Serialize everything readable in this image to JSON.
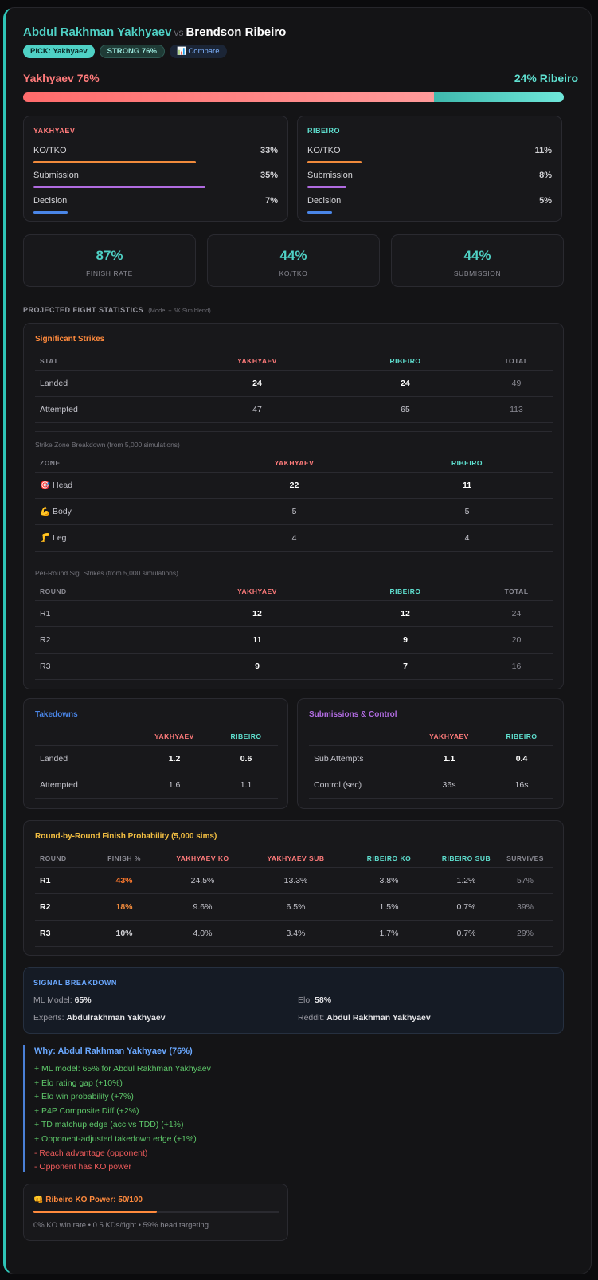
{
  "header": {
    "fighter_a": "Abdul Rakhman Yakhyaev",
    "vs": "vs",
    "fighter_b": "Brendson Ribeiro",
    "badges": {
      "pick": "PICK: Yakhyaev",
      "strength": "STRONG 76%",
      "compare": "📊 Compare"
    }
  },
  "win_prob": {
    "left_label": "Yakhyaev 76%",
    "right_label": "24% Ribeiro",
    "left_value": 76,
    "right_value": 24,
    "left_color": "#ff7b7b",
    "right_color": "#5fe0d0"
  },
  "finish_methods": {
    "a": {
      "title": "YAKHYAEV",
      "rows": [
        {
          "label": "KO/TKO",
          "value": "33%",
          "bar": 33,
          "color": "#f08a3c"
        },
        {
          "label": "Submission",
          "value": "35%",
          "bar": 35,
          "color": "#b06be0"
        },
        {
          "label": "Decision",
          "value": "7%",
          "bar": 7,
          "color": "#4a86e8"
        }
      ]
    },
    "b": {
      "title": "RIBEIRO",
      "rows": [
        {
          "label": "KO/TKO",
          "value": "11%",
          "bar": 11,
          "color": "#f08a3c"
        },
        {
          "label": "Submission",
          "value": "8%",
          "bar": 8,
          "color": "#b06be0"
        },
        {
          "label": "Decision",
          "value": "5%",
          "bar": 5,
          "color": "#4a86e8"
        }
      ]
    }
  },
  "summary_stats": [
    {
      "value": "87%",
      "label": "FINISH RATE"
    },
    {
      "value": "44%",
      "label": "KO/TKO"
    },
    {
      "value": "44%",
      "label": "SUBMISSION"
    }
  ],
  "projected": {
    "title": "PROJECTED FIGHT STATISTICS",
    "subtitle": "(Model + 5K Sim blend)"
  },
  "sig_strikes": {
    "title": "Significant Strikes",
    "headers": [
      "STAT",
      "YAKHYAEV",
      "RIBEIRO",
      "TOTAL"
    ],
    "rows": [
      [
        "Landed",
        "24",
        "24",
        "49"
      ],
      [
        "Attempted",
        "47",
        "65",
        "113"
      ]
    ],
    "zone_label": "Strike Zone Breakdown (from 5,000 simulations)",
    "zone_headers": [
      "ZONE",
      "YAKHYAEV",
      "RIBEIRO"
    ],
    "zone_rows": [
      [
        "🎯 Head",
        "22",
        "11"
      ],
      [
        "💪 Body",
        "5",
        "5"
      ],
      [
        "🦵 Leg",
        "4",
        "4"
      ]
    ],
    "round_label": "Per-Round Sig. Strikes (from 5,000 simulations)",
    "round_headers": [
      "ROUND",
      "YAKHYAEV",
      "RIBEIRO",
      "TOTAL"
    ],
    "round_rows": [
      [
        "R1",
        "12",
        "12",
        "24"
      ],
      [
        "R2",
        "11",
        "9",
        "20"
      ],
      [
        "R3",
        "9",
        "7",
        "16"
      ]
    ]
  },
  "takedowns": {
    "title": "Takedowns",
    "headers": [
      "",
      "YAKHYAEV",
      "RIBEIRO"
    ],
    "rows": [
      [
        "Landed",
        "1.2",
        "0.6"
      ],
      [
        "Attempted",
        "1.6",
        "1.1"
      ]
    ]
  },
  "subs_control": {
    "title": "Submissions & Control",
    "headers": [
      "",
      "YAKHYAEV",
      "RIBEIRO"
    ],
    "rows": [
      [
        "Sub Attempts",
        "1.1",
        "0.4"
      ],
      [
        "Control (sec)",
        "36s",
        "16s"
      ]
    ]
  },
  "round_finish": {
    "title": "Round-by-Round Finish Probability (5,000 sims)",
    "headers": [
      "ROUND",
      "FINISH %",
      "YAKHYAEV KO",
      "YAKHYAEV SUB",
      "RIBEIRO KO",
      "RIBEIRO SUB",
      "SURVIVES"
    ],
    "rows": [
      [
        "R1",
        "43%",
        "24.5%",
        "13.3%",
        "3.8%",
        "1.2%",
        "57%"
      ],
      [
        "R2",
        "18%",
        "9.6%",
        "6.5%",
        "1.5%",
        "0.7%",
        "39%"
      ],
      [
        "R3",
        "10%",
        "4.0%",
        "3.4%",
        "1.7%",
        "0.7%",
        "29%"
      ]
    ]
  },
  "signal": {
    "title": "SIGNAL BREAKDOWN",
    "ml_label": "ML Model:",
    "ml_value": "65%",
    "elo_label": "Elo:",
    "elo_value": "58%",
    "experts_label": "Experts:",
    "experts_value": "Abdulrakhman Yakhyaev",
    "reddit_label": "Reddit:",
    "reddit_value": "Abdul Rakhman Yakhyaev"
  },
  "why": {
    "title": "Why: Abdul Rakhman Yakhyaev (76%)",
    "positives": [
      "+ ML model: 65% for Abdul Rakhman Yakhyaev",
      "+ Elo rating gap (+10%)",
      "+ Elo win probability (+7%)",
      "+ P4P Composite Diff (+2%)",
      "+ TD matchup edge (acc vs TDD) (+1%)",
      "+ Opponent-adjusted takedown edge (+1%)"
    ],
    "negatives": [
      "- Reach advantage (opponent)",
      "- Opponent has KO power"
    ]
  },
  "ko_power": {
    "title": "👊 Ribeiro KO Power: 50/100",
    "value": 50,
    "detail": "0% KO win rate • 0.5 KDs/fight • 59% head targeting"
  }
}
